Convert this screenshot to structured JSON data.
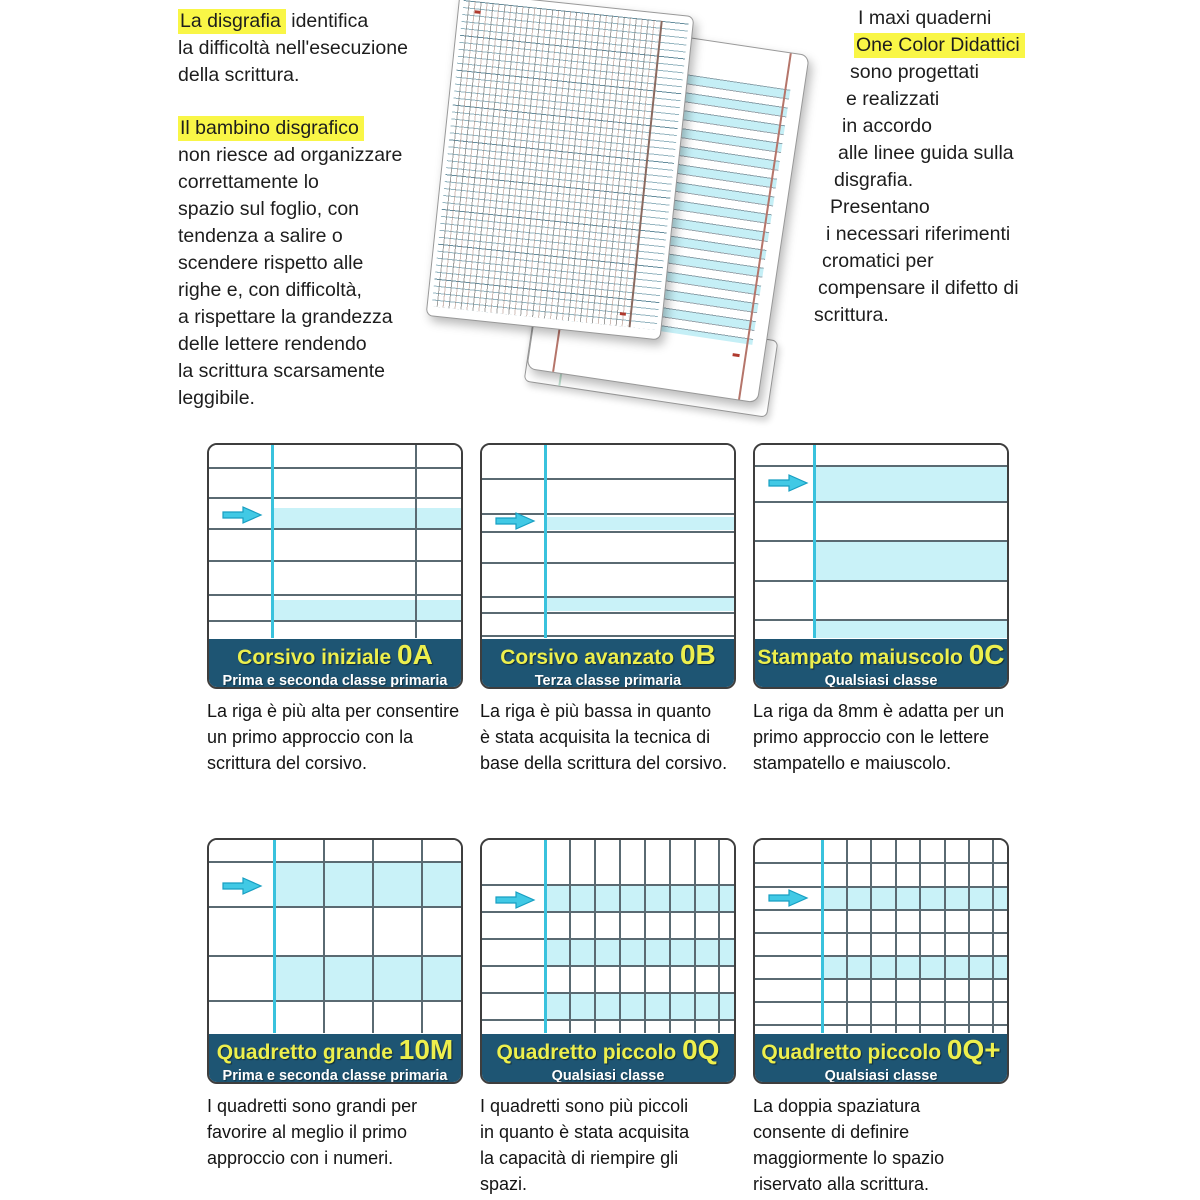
{
  "colors": {
    "highlight": "#f9f646",
    "banner_bg": "#1e5573",
    "banner_title": "#edef4d",
    "banner_subtitle": "#ffffff",
    "stripe": "#c9f2f8",
    "margin_line": "#39c2dd",
    "rule_line": "#5a6a72",
    "arrow": "#41c9e5",
    "text": "#1d1d1d"
  },
  "left_text": {
    "lines": [
      {
        "hl": "La disgrafia",
        "rest": " identifica"
      },
      {
        "rest": "la difficoltà nell'esecuzione"
      },
      {
        "rest": "della scrittura."
      },
      {
        "spacer": true
      },
      {
        "hl": "Il bambino disgrafico"
      },
      {
        "rest": "non riesce ad organizzare"
      },
      {
        "rest": "correttamente lo"
      },
      {
        "rest": "spazio sul foglio, con"
      },
      {
        "rest": "tendenza a salire o"
      },
      {
        "rest": "scendere rispetto alle"
      },
      {
        "rest": "righe e, con difficoltà,"
      },
      {
        "rest": "a rispettare la grandezza"
      },
      {
        "rest": "delle lettere rendendo"
      },
      {
        "rest": "la scrittura scarsamente"
      },
      {
        "rest": "leggibile."
      }
    ]
  },
  "right_text": {
    "lines": [
      {
        "rest": "I maxi quaderni"
      },
      {
        "hl": "One Color Didattici"
      },
      {
        "rest": "sono progettati"
      },
      {
        "rest": "e realizzati"
      },
      {
        "rest": "in accordo"
      },
      {
        "rest": "alle linee guida sulla"
      },
      {
        "rest": "disgrafia."
      },
      {
        "rest": "Presentano"
      },
      {
        "rest": "i necessari riferimenti"
      },
      {
        "rest": "cromatici per"
      },
      {
        "rest": "compensare il difetto di"
      },
      {
        "rest": "scrittura."
      }
    ]
  },
  "panels": [
    {
      "title": "Corsivo iniziale",
      "code": "0A",
      "subtitle": "Prima e seconda classe primaria",
      "description": "La riga è più alta per consentire\nun primo approccio con la\nscrittura del corsivo."
    },
    {
      "title": "Corsivo avanzato",
      "code": "0B",
      "subtitle": "Terza classe primaria",
      "description": "La riga è più bassa in quanto\nè stata acquisita la tecnica di\nbase della scrittura del corsivo."
    },
    {
      "title": "Stampato maiuscolo",
      "code": "0C",
      "subtitle": "Qualsiasi classe",
      "description": "La riga da 8mm è adatta per un\nprimo approccio con le lettere\nstampatello e maiuscolo."
    },
    {
      "title": "Quadretto grande",
      "code": "10M",
      "subtitle": "Prima e seconda classe primaria",
      "description": "I quadretti sono grandi per\nfavorire al meglio il primo\napproccio con i numeri."
    },
    {
      "title": "Quadretto piccolo",
      "code": "0Q",
      "subtitle": "Qualsiasi classe",
      "description": "I quadretti sono più piccoli\nin quanto è stata acquisita\nla capacità di riempire gli\nspazi."
    },
    {
      "title": "Quadretto piccolo",
      "code": "0Q+",
      "subtitle": "Qualsiasi classe",
      "description": "La doppia spaziatura\nconsente di definire\nmaggiormente lo spazio\nriservato alla scrittura."
    }
  ]
}
